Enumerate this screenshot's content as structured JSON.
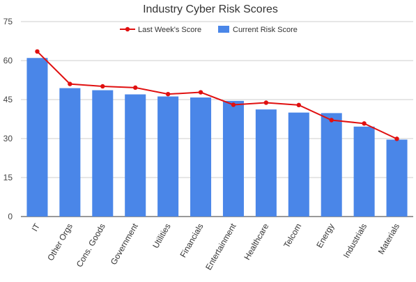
{
  "chart_data": {
    "type": "bar",
    "title": "Industry Cyber Risk Scores",
    "categories": [
      "IT",
      "Other Orgs",
      "Cons. Goods",
      "Government",
      "Utilities",
      "Financials",
      "Entertainment",
      "Healthcare",
      "Telcom",
      "Energy",
      "Industrials",
      "Materials"
    ],
    "series": [
      {
        "name": "Current Risk Score",
        "kind": "bar",
        "color": "#4a86e8",
        "values": [
          61,
          49.4,
          48.6,
          47,
          46.2,
          45.8,
          44.5,
          41.2,
          40,
          39.8,
          34.6,
          29.6
        ]
      },
      {
        "name": "Last Week's Score",
        "kind": "line",
        "color": "#e01010",
        "values": [
          63.5,
          51,
          50.1,
          49.6,
          47.1,
          47.8,
          43,
          43.8,
          42.9,
          37.1,
          35.8,
          29.9
        ]
      }
    ],
    "xlabel": "",
    "ylabel": "",
    "ylim": [
      0,
      75
    ],
    "yticks": [
      0,
      15,
      30,
      45,
      60,
      75
    ],
    "grid": true,
    "legend_position": "top-center"
  }
}
